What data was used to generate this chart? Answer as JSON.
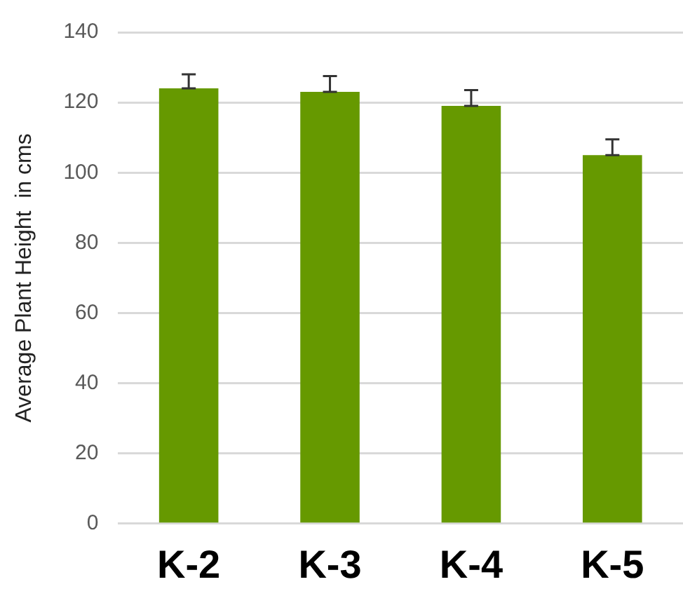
{
  "chart_data": {
    "type": "bar",
    "ylabel": "Average Plant Height  in cms",
    "categories": [
      "K-2",
      "K-3",
      "K-4",
      "K-5"
    ],
    "values": [
      124,
      123,
      119,
      105
    ],
    "color": "#669900",
    "errors": [
      [
        124,
        128
      ],
      [
        123,
        127.5
      ],
      [
        119,
        123.5
      ],
      [
        105,
        109.5
      ]
    ],
    "ylim": [
      0,
      140
    ],
    "yticks": [
      0,
      20,
      40,
      60,
      80,
      100,
      120,
      140
    ],
    "grid": "y",
    "legend": false
  }
}
